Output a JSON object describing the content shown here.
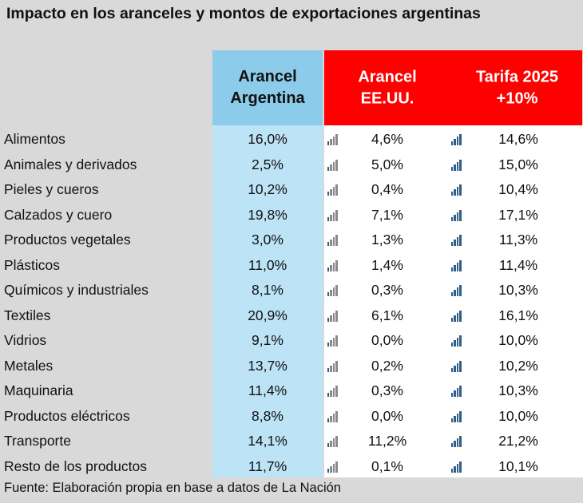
{
  "chart_data": {
    "type": "table",
    "title": "Impacto en los aranceles y montos de exportaciones argentinas",
    "columns": [
      {
        "key": "ar",
        "label_lines": [
          "Arancel",
          "Argentina"
        ]
      },
      {
        "key": "us",
        "label_lines": [
          "Arancel",
          "EE.UU."
        ]
      },
      {
        "key": "tf",
        "label_lines": [
          "Tarifa 2025",
          "+10%"
        ]
      }
    ],
    "rows": [
      {
        "category": "Alimentos",
        "ar": "16,0%",
        "us": "4,6%",
        "tf": "14,6%"
      },
      {
        "category": "Animales y derivados",
        "ar": "2,5%",
        "us": "5,0%",
        "tf": "15,0%"
      },
      {
        "category": "Pieles y cueros",
        "ar": "10,2%",
        "us": "0,4%",
        "tf": "10,4%"
      },
      {
        "category": "Calzados y cuero",
        "ar": "19,8%",
        "us": "7,1%",
        "tf": "17,1%"
      },
      {
        "category": "Productos vegetales",
        "ar": "3,0%",
        "us": "1,3%",
        "tf": "11,3%"
      },
      {
        "category": "Plásticos",
        "ar": "11,0%",
        "us": "1,4%",
        "tf": "11,4%"
      },
      {
        "category": "Químicos y industriales",
        "ar": "8,1%",
        "us": "0,3%",
        "tf": "10,3%"
      },
      {
        "category": "Textiles",
        "ar": "20,9%",
        "us": "6,1%",
        "tf": "16,1%"
      },
      {
        "category": "Vidrios",
        "ar": "9,1%",
        "us": "0,0%",
        "tf": "10,0%"
      },
      {
        "category": "Metales",
        "ar": "13,7%",
        "us": "0,2%",
        "tf": "10,2%"
      },
      {
        "category": "Maquinaria",
        "ar": "11,4%",
        "us": "0,3%",
        "tf": "10,3%"
      },
      {
        "category": "Productos eléctricos",
        "ar": "8,8%",
        "us": "0,0%",
        "tf": "10,0%"
      },
      {
        "category": "Transporte",
        "ar": "14,1%",
        "us": "11,2%",
        "tf": "21,2%"
      },
      {
        "category": "Resto de los productos",
        "ar": "11,7%",
        "us": "0,1%",
        "tf": "10,1%"
      }
    ],
    "source": "Fuente: Elaboración propia en base a datos de La Nación"
  },
  "icons": {
    "us_column": "signal-bars-low-icon",
    "tf_column": "signal-bars-full-icon"
  },
  "colors": {
    "background": "#d9d9d9",
    "argentina_header": "#8ccbea",
    "argentina_column": "#bde3f6",
    "us_header": "#ff0000",
    "bar_icon_blue": "#2f5d8a",
    "bar_icon_gray": "#8a8a8a"
  }
}
